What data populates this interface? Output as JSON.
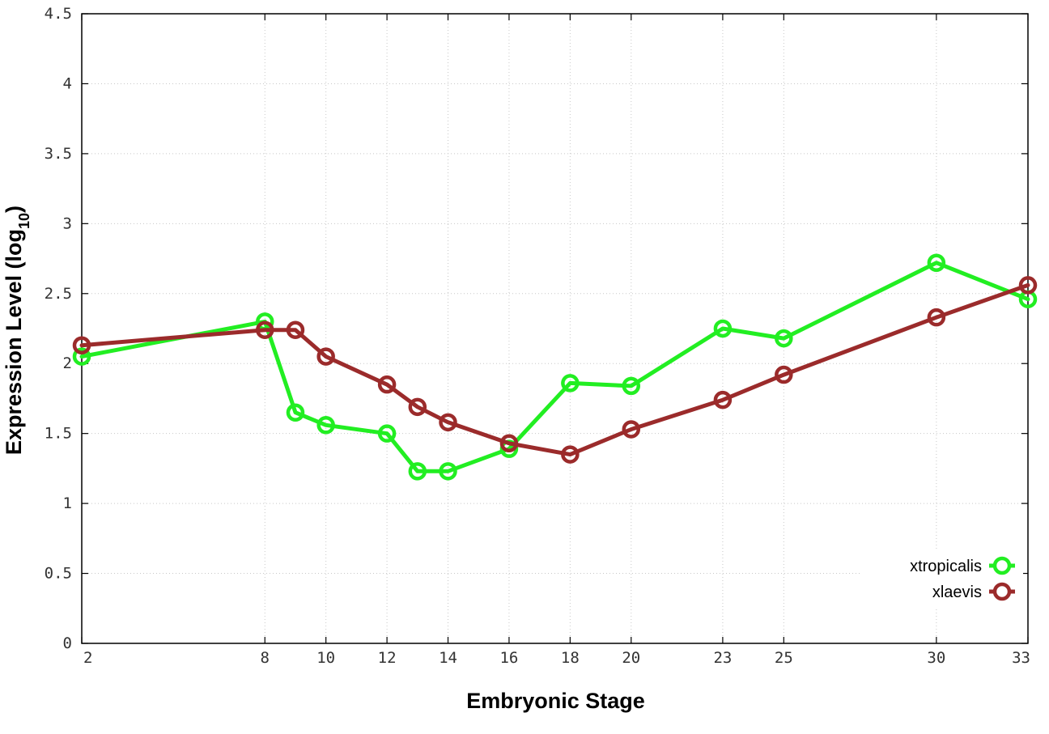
{
  "chart_data": {
    "type": "line",
    "xlabel": "Embryonic Stage",
    "ylabel_main": "Expression Level (log",
    "ylabel_sub": "10",
    "ylabel_close": ")",
    "x": [
      2,
      8,
      9,
      10,
      12,
      13,
      14,
      16,
      18,
      20,
      23,
      25,
      30,
      33
    ],
    "xticks": [
      2,
      8,
      10,
      12,
      14,
      16,
      18,
      20,
      23,
      25,
      30,
      33
    ],
    "xlim": [
      2,
      33
    ],
    "ylim": [
      0,
      4.5
    ],
    "yticks": [
      "0",
      "0.5",
      "1",
      "1.5",
      "2",
      "2.5",
      "3",
      "3.5",
      "4",
      "4.5"
    ],
    "grid": true,
    "legend_position": "bottom-right",
    "series": [
      {
        "name": "xtropicalis",
        "color": "#22ee22",
        "values": [
          2.05,
          2.3,
          1.65,
          1.56,
          1.5,
          1.23,
          1.23,
          1.39,
          1.86,
          1.84,
          2.25,
          2.18,
          2.72,
          2.46
        ]
      },
      {
        "name": "xlaevis",
        "color": "#9b2b2b",
        "values": [
          2.13,
          2.24,
          2.24,
          2.05,
          1.85,
          1.69,
          1.58,
          1.43,
          1.35,
          1.53,
          1.74,
          1.92,
          2.33,
          2.56
        ]
      }
    ]
  }
}
